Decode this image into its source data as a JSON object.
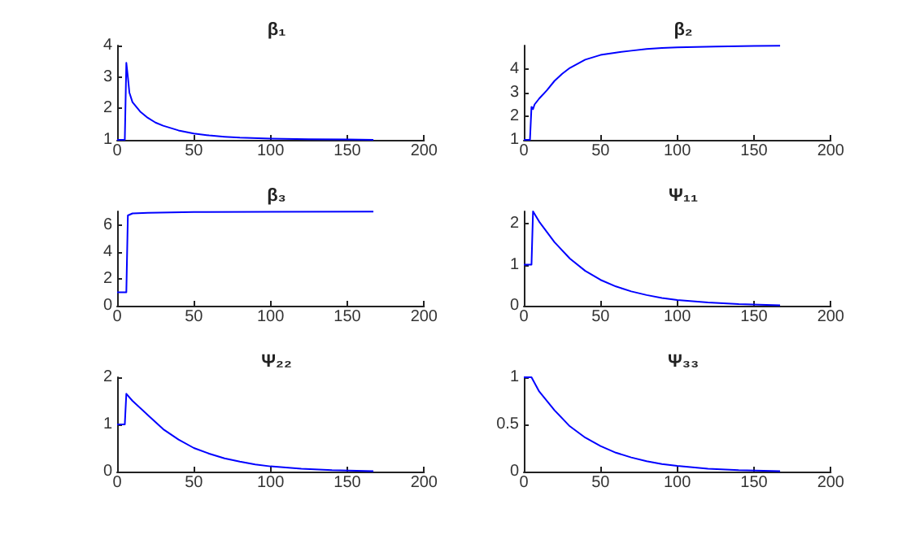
{
  "chart_data": [
    {
      "type": "line",
      "title": "β₁",
      "x": [
        0,
        5,
        6,
        7,
        8,
        10,
        15,
        20,
        25,
        30,
        40,
        50,
        60,
        70,
        80,
        100,
        125,
        150,
        167
      ],
      "series": [
        {
          "color": "#0000ff",
          "values": [
            1,
            1,
            3.45,
            3.0,
            2.5,
            2.2,
            1.9,
            1.7,
            1.55,
            1.45,
            1.3,
            1.2,
            1.14,
            1.1,
            1.07,
            1.04,
            1.02,
            1.01,
            1.0
          ]
        }
      ],
      "xlim": [
        0,
        200
      ],
      "xticks": [
        0,
        50,
        100,
        150,
        200
      ],
      "ylim": [
        1,
        4
      ],
      "yticks": [
        1,
        2,
        3,
        4
      ],
      "grid": false,
      "marker": "none"
    },
    {
      "type": "line",
      "title": "β₂",
      "x": [
        0,
        4,
        5,
        6,
        7,
        10,
        15,
        20,
        25,
        30,
        40,
        50,
        60,
        70,
        80,
        90,
        100,
        125,
        150,
        167
      ],
      "series": [
        {
          "color": "#0000ff",
          "values": [
            1,
            1,
            2.4,
            2.3,
            2.5,
            2.75,
            3.1,
            3.5,
            3.8,
            4.05,
            4.4,
            4.6,
            4.7,
            4.78,
            4.85,
            4.9,
            4.92,
            4.96,
            4.98,
            4.99
          ]
        }
      ],
      "xlim": [
        0,
        200
      ],
      "xticks": [
        0,
        50,
        100,
        150,
        200
      ],
      "ylim": [
        1,
        5
      ],
      "yticks": [
        1,
        2,
        3,
        4
      ],
      "grid": false,
      "marker": "none"
    },
    {
      "type": "line",
      "title": "β₃",
      "x": [
        0,
        6,
        7,
        10,
        20,
        50,
        100,
        167
      ],
      "series": [
        {
          "color": "#0000ff",
          "values": [
            1,
            1,
            6.7,
            6.85,
            6.9,
            6.95,
            6.97,
            6.98
          ]
        }
      ],
      "xlim": [
        0,
        200
      ],
      "xticks": [
        0,
        50,
        100,
        150,
        200
      ],
      "ylim": [
        0,
        7
      ],
      "yticks": [
        0,
        2,
        4,
        6
      ],
      "grid": false,
      "marker": "none"
    },
    {
      "type": "line",
      "title": "Ψ₁₁",
      "x": [
        0,
        5,
        6,
        10,
        20,
        30,
        40,
        50,
        60,
        70,
        80,
        90,
        100,
        120,
        140,
        167
      ],
      "series": [
        {
          "color": "#0000ff",
          "values": [
            1,
            1,
            2.3,
            2.05,
            1.55,
            1.15,
            0.85,
            0.63,
            0.47,
            0.35,
            0.26,
            0.19,
            0.14,
            0.08,
            0.04,
            0.01
          ]
        }
      ],
      "xlim": [
        0,
        200
      ],
      "xticks": [
        0,
        50,
        100,
        150,
        200
      ],
      "ylim": [
        0,
        2.3
      ],
      "yticks": [
        0,
        1,
        2
      ],
      "grid": false,
      "marker": "none"
    },
    {
      "type": "line",
      "title": "Ψ₂₂",
      "x": [
        0,
        5,
        6,
        10,
        20,
        30,
        40,
        50,
        60,
        70,
        80,
        90,
        100,
        120,
        140,
        167
      ],
      "series": [
        {
          "color": "#0000ff",
          "values": [
            1,
            1,
            1.65,
            1.5,
            1.2,
            0.9,
            0.68,
            0.5,
            0.38,
            0.28,
            0.21,
            0.15,
            0.11,
            0.06,
            0.03,
            0.01
          ]
        }
      ],
      "xlim": [
        0,
        200
      ],
      "xticks": [
        0,
        50,
        100,
        150,
        200
      ],
      "ylim": [
        0,
        2
      ],
      "yticks": [
        0,
        1,
        2
      ],
      "grid": false,
      "marker": "none"
    },
    {
      "type": "line",
      "title": "Ψ₃₃",
      "x": [
        0,
        5,
        10,
        20,
        30,
        40,
        50,
        60,
        70,
        80,
        90,
        100,
        120,
        140,
        167
      ],
      "series": [
        {
          "color": "#0000ff",
          "values": [
            1,
            1,
            0.85,
            0.65,
            0.48,
            0.36,
            0.27,
            0.2,
            0.15,
            0.11,
            0.08,
            0.06,
            0.03,
            0.015,
            0.005
          ]
        }
      ],
      "xlim": [
        0,
        200
      ],
      "xticks": [
        0,
        50,
        100,
        150,
        200
      ],
      "ylim": [
        0,
        1
      ],
      "yticks": [
        0,
        0.5,
        1
      ],
      "grid": false,
      "marker": "none"
    }
  ]
}
